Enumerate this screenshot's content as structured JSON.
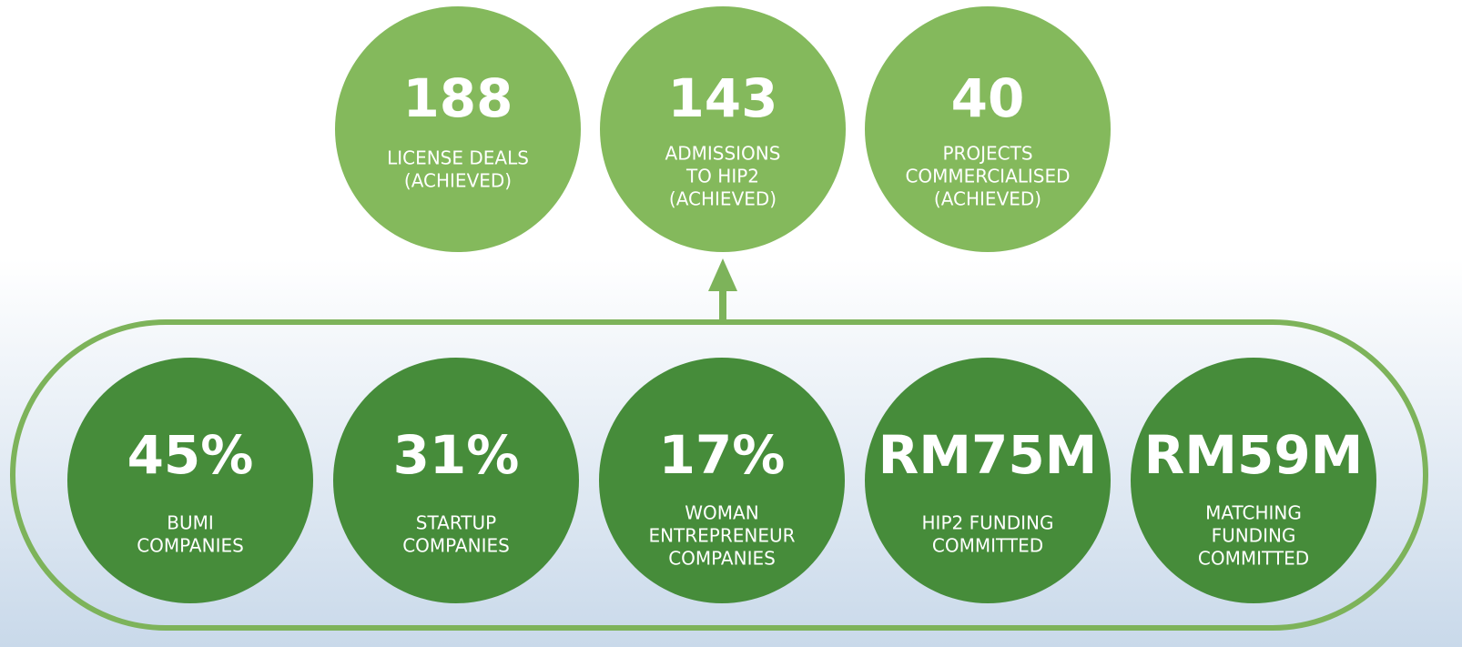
{
  "top_metrics": [
    {
      "value": "188",
      "label_lines": [
        "LICENSE DEALS",
        "(ACHIEVED)"
      ]
    },
    {
      "value": "143",
      "label_lines": [
        "ADMISSIONS",
        "TO HIP2",
        "(ACHIEVED)"
      ]
    },
    {
      "value": "40",
      "label_lines": [
        "PROJECTS",
        "COMMERCIALISED",
        "(ACHIEVED)"
      ]
    }
  ],
  "bottom_metrics": [
    {
      "value": "45%",
      "label_lines": [
        "BUMI",
        "COMPANIES"
      ]
    },
    {
      "value": "31%",
      "label_lines": [
        "STARTUP",
        "COMPANIES"
      ]
    },
    {
      "value": "17%",
      "label_lines": [
        "WOMAN",
        "ENTREPRENEUR",
        "COMPANIES"
      ]
    },
    {
      "value": "RM75M",
      "label_lines": [
        "HIP2 FUNDING",
        "COMMITTED"
      ]
    },
    {
      "value": "RM59M",
      "label_lines": [
        "MATCHING",
        "FUNDING",
        "COMMITTED"
      ]
    }
  ]
}
